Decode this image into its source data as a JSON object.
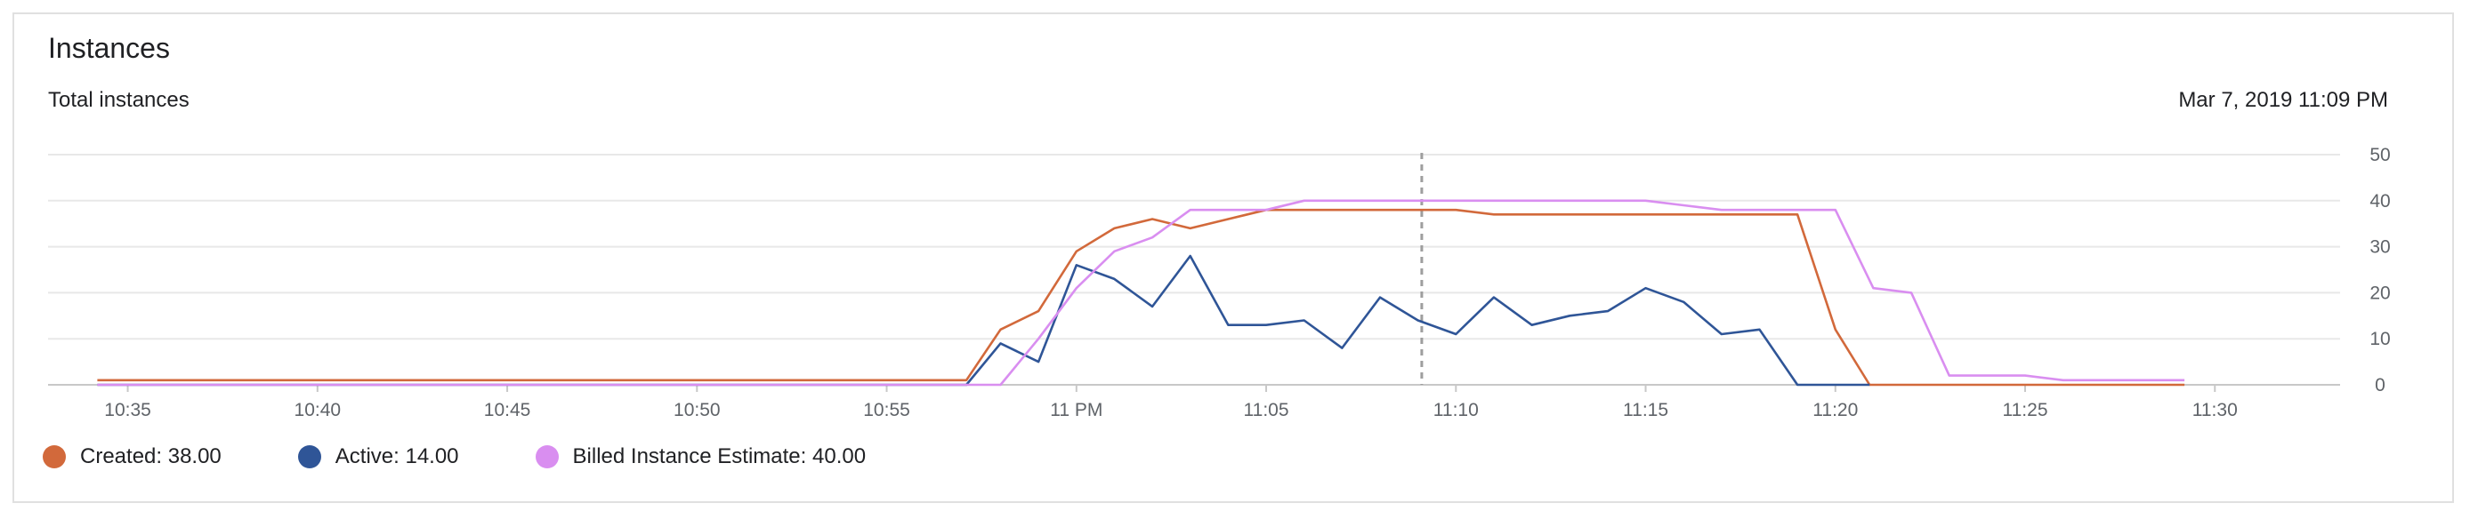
{
  "card": {
    "title": "Instances",
    "subtitle": "Total instances",
    "timestamp": "Mar 7, 2019 11:09 PM"
  },
  "colors": {
    "created": "#d2693b",
    "active": "#2f5597",
    "billed": "#d98ef0",
    "grid": "#e8e8e8",
    "cursor": "#9e9e9e"
  },
  "chart_data": {
    "type": "line",
    "title": "Instances",
    "subtitle": "Total instances",
    "x_unit": "minutes",
    "x_ticks": [
      {
        "t": 35,
        "label": "10:35"
      },
      {
        "t": 40,
        "label": "10:40"
      },
      {
        "t": 45,
        "label": "10:45"
      },
      {
        "t": 50,
        "label": "10:50"
      },
      {
        "t": 55,
        "label": "10:55"
      },
      {
        "t": 60,
        "label": "11 PM"
      },
      {
        "t": 65,
        "label": "11:05"
      },
      {
        "t": 70,
        "label": "11:10"
      },
      {
        "t": 75,
        "label": "11:15"
      },
      {
        "t": 80,
        "label": "11:20"
      },
      {
        "t": 85,
        "label": "11:25"
      },
      {
        "t": 90,
        "label": "11:30"
      }
    ],
    "xlim": [
      32.9,
      93.3
    ],
    "y_ticks": [
      0,
      10,
      20,
      30,
      40,
      50
    ],
    "ylim": [
      0,
      50
    ],
    "y_axis_side": "right",
    "grid": true,
    "cursor_t": 69.1,
    "legend_position": "bottom-left",
    "series": [
      {
        "key": "created",
        "name": "Created",
        "legend_label": "Created: 38.00",
        "color": "#d2693b",
        "points": [
          [
            34.2,
            1
          ],
          [
            57.1,
            1
          ],
          [
            58,
            12
          ],
          [
            59,
            16
          ],
          [
            60,
            29
          ],
          [
            61,
            34
          ],
          [
            62,
            36
          ],
          [
            63,
            34
          ],
          [
            64,
            36
          ],
          [
            65,
            38
          ],
          [
            66,
            38
          ],
          [
            67,
            38
          ],
          [
            68,
            38
          ],
          [
            69,
            38
          ],
          [
            70,
            38
          ],
          [
            71,
            37
          ],
          [
            72,
            37
          ],
          [
            73,
            37
          ],
          [
            74,
            37
          ],
          [
            75,
            37
          ],
          [
            76,
            37
          ],
          [
            77,
            37
          ],
          [
            78,
            37
          ],
          [
            79,
            37
          ],
          [
            80,
            12
          ],
          [
            80.9,
            0
          ],
          [
            89.2,
            0
          ]
        ]
      },
      {
        "key": "active",
        "name": "Active",
        "legend_label": "Active: 14.00",
        "color": "#2f5597",
        "points": [
          [
            34.2,
            0
          ],
          [
            57.1,
            0
          ],
          [
            58,
            9
          ],
          [
            59,
            5
          ],
          [
            60,
            26
          ],
          [
            61,
            23
          ],
          [
            62,
            17
          ],
          [
            63,
            28
          ],
          [
            64,
            13
          ],
          [
            65,
            13
          ],
          [
            66,
            14
          ],
          [
            67,
            8
          ],
          [
            68,
            19
          ],
          [
            69,
            14
          ],
          [
            70,
            11
          ],
          [
            71,
            19
          ],
          [
            72,
            13
          ],
          [
            73,
            15
          ],
          [
            74,
            16
          ],
          [
            75,
            21
          ],
          [
            76,
            18
          ],
          [
            77,
            11
          ],
          [
            78,
            12
          ],
          [
            79,
            0
          ],
          [
            80.9,
            0
          ]
        ]
      },
      {
        "key": "billed",
        "name": "Billed Instance Estimate",
        "legend_label": "Billed Instance Estimate: 40.00",
        "color": "#d98ef0",
        "points": [
          [
            34.2,
            0
          ],
          [
            58,
            0
          ],
          [
            59,
            10
          ],
          [
            60,
            21
          ],
          [
            61,
            29
          ],
          [
            62,
            32
          ],
          [
            63,
            38
          ],
          [
            64,
            38
          ],
          [
            65,
            38
          ],
          [
            66,
            40
          ],
          [
            67,
            40
          ],
          [
            68,
            40
          ],
          [
            69,
            40
          ],
          [
            70,
            40
          ],
          [
            71,
            40
          ],
          [
            72,
            40
          ],
          [
            73,
            40
          ],
          [
            74,
            40
          ],
          [
            75,
            40
          ],
          [
            76,
            39
          ],
          [
            77,
            38
          ],
          [
            78,
            38
          ],
          [
            79,
            38
          ],
          [
            80,
            38
          ],
          [
            81,
            21
          ],
          [
            82,
            20
          ],
          [
            83,
            2
          ],
          [
            84,
            2
          ],
          [
            85,
            2
          ],
          [
            86,
            1
          ],
          [
            89.2,
            1
          ]
        ]
      }
    ]
  }
}
